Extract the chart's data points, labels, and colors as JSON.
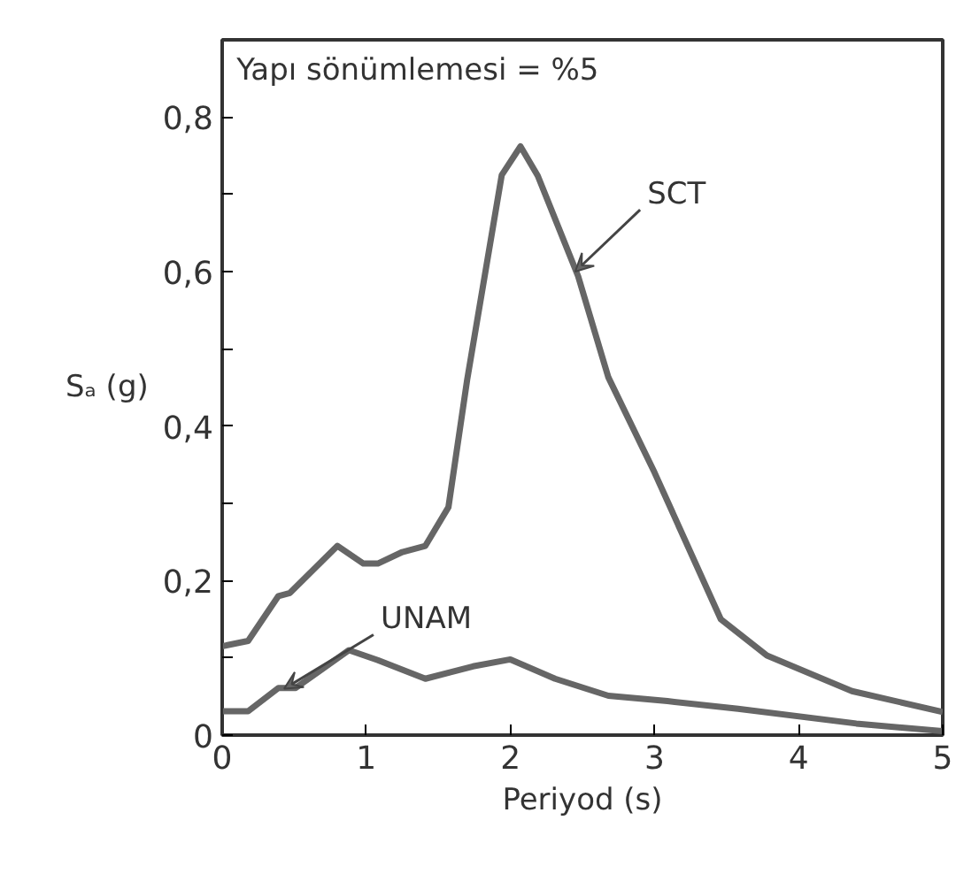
{
  "chart_data": {
    "type": "line",
    "xlabel": "Periyod (s)",
    "ylabel": "Sₐ (g)",
    "xlim": [
      0,
      5
    ],
    "ylim": [
      0,
      0.9
    ],
    "xticks": [
      0,
      1,
      2,
      3,
      4,
      5
    ],
    "yticks": [
      0,
      {
        "value": 0.1,
        "label": null
      },
      {
        "value": 0.2,
        "label": "0,2"
      },
      {
        "value": 0.3,
        "label": null
      },
      {
        "value": 0.4,
        "label": "0,4"
      },
      {
        "value": 0.5,
        "label": null
      },
      {
        "value": 0.6,
        "label": "0,6"
      },
      {
        "value": 0.7,
        "label": null
      },
      {
        "value": 0.8,
        "label": "0,8"
      }
    ],
    "grid": false,
    "line_style": "solid",
    "marker": "none",
    "annotations": [
      "Yapı sönümlemesi = %5",
      {
        "text": "SCT",
        "x": 2.45,
        "y": 0.6
      },
      {
        "text": "UNAM",
        "x": 0.43,
        "y": 0.06
      }
    ],
    "series": [
      {
        "color": "#666666",
        "x": [
          0,
          0.18,
          0.39,
          0.47,
          0.8,
          0.98,
          1.08,
          1.25,
          1.41,
          1.57,
          1.7,
          1.94,
          2.07,
          2.19,
          2.47,
          2.68,
          3.0,
          3.46,
          3.78,
          4.37,
          5.0
        ],
        "values": [
          0.115,
          0.122,
          0.18,
          0.184,
          0.245,
          0.222,
          0.222,
          0.237,
          0.245,
          0.295,
          0.46,
          0.725,
          0.762,
          0.724,
          0.594,
          0.463,
          0.34,
          0.15,
          0.103,
          0.057,
          0.03
        ]
      },
      {
        "color": "#666666",
        "x": [
          0,
          0.18,
          0.39,
          0.51,
          0.88,
          1.08,
          1.41,
          1.74,
          2.0,
          2.31,
          2.68,
          3.09,
          3.58,
          4.4,
          5.0
        ],
        "values": [
          0.031,
          0.031,
          0.061,
          0.061,
          0.11,
          0.097,
          0.073,
          0.089,
          0.098,
          0.073,
          0.051,
          0.044,
          0.034,
          0.015,
          0.005
        ]
      }
    ]
  }
}
